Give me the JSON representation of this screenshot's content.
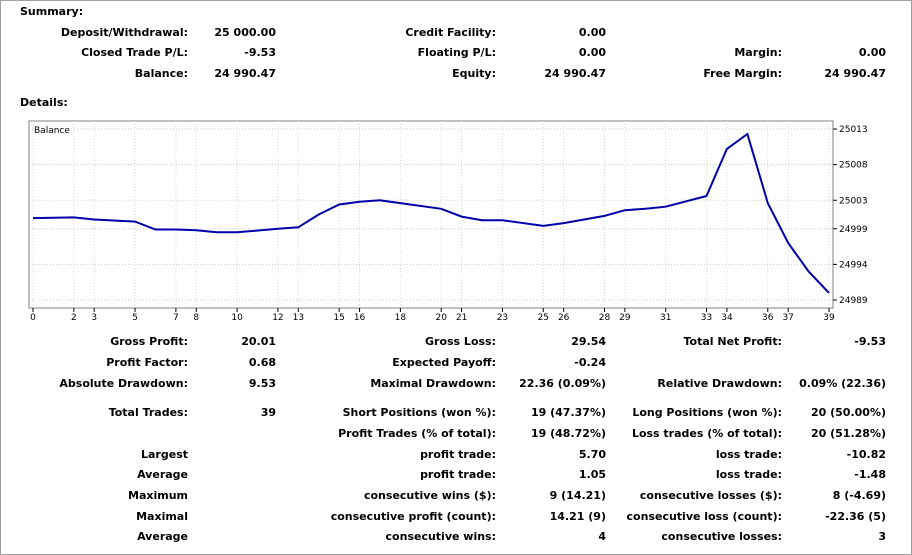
{
  "summary": {
    "title": "Summary:",
    "deposit_label": "Deposit/Withdrawal:",
    "deposit_value": "25 000.00",
    "closed_pl_label": "Closed Trade P/L:",
    "closed_pl_value": "-9.53",
    "balance_label": "Balance:",
    "balance_value": "24 990.47",
    "credit_label": "Credit Facility:",
    "credit_value": "0.00",
    "floating_label": "Floating P/L:",
    "floating_value": "0.00",
    "equity_label": "Equity:",
    "equity_value": "24 990.47",
    "margin_label": "Margin:",
    "margin_value": "0.00",
    "free_margin_label": "Free Margin:",
    "free_margin_value": "24 990.47"
  },
  "details": {
    "title": "Details:",
    "gross_profit_label": "Gross Profit:",
    "gross_profit_value": "20.01",
    "gross_loss_label": "Gross Loss:",
    "gross_loss_value": "29.54",
    "net_profit_label": "Total Net Profit:",
    "net_profit_value": "-9.53",
    "profit_factor_label": "Profit Factor:",
    "profit_factor_value": "0.68",
    "expected_payoff_label": "Expected Payoff:",
    "expected_payoff_value": "-0.24",
    "abs_dd_label": "Absolute Drawdown:",
    "abs_dd_value": "9.53",
    "max_dd_label": "Maximal Drawdown:",
    "max_dd_value": "22.36 (0.09%)",
    "rel_dd_label": "Relative Drawdown:",
    "rel_dd_value": "0.09% (22.36)",
    "total_trades_label": "Total Trades:",
    "total_trades_value": "39",
    "short_label": "Short Positions (won %):",
    "short_value": "19 (47.37%)",
    "long_label": "Long Positions (won %):",
    "long_value": "20 (50.00%)",
    "profit_trades_label": "Profit Trades (% of total):",
    "profit_trades_value": "19 (48.72%)",
    "loss_trades_label": "Loss trades (% of total):",
    "loss_trades_value": "20 (51.28%)",
    "largest_label": "Largest",
    "largest_profit_label": "profit trade:",
    "largest_profit_value": "5.70",
    "largest_loss_label": "loss trade:",
    "largest_loss_value": "-10.82",
    "average_label": "Average",
    "average_profit_label": "profit trade:",
    "average_profit_value": "1.05",
    "average_loss_label": "loss trade:",
    "average_loss_value": "-1.48",
    "maximum_label": "Maximum",
    "max_cons_wins_label": "consecutive wins ($):",
    "max_cons_wins_value": "9 (14.21)",
    "max_cons_losses_label": "consecutive losses ($):",
    "max_cons_losses_value": "8 (-4.69)",
    "maximal_label": "Maximal",
    "maximal_profit_label": "consecutive profit (count):",
    "maximal_profit_value": "14.21 (9)",
    "maximal_loss_label": "consecutive loss (count):",
    "maximal_loss_value": "-22.36 (5)",
    "average2_label": "Average",
    "avg_cons_wins_label": "consecutive wins:",
    "avg_cons_wins_value": "4",
    "avg_cons_losses_label": "consecutive losses:",
    "avg_cons_losses_value": "3"
  },
  "chart_data": {
    "type": "line",
    "title": "Balance",
    "line_color": "#0000aa",
    "grid": true,
    "x_ticks": [
      "0",
      "2",
      "3",
      "5",
      "7",
      "8",
      "10",
      "12",
      "13",
      "15",
      "16",
      "18",
      "20",
      "21",
      "23",
      "25",
      "26",
      "28",
      "29",
      "31",
      "33",
      "34",
      "36",
      "37",
      "39"
    ],
    "y_ticks": [
      "25013",
      "25008",
      "25003",
      "24999",
      "24994",
      "24989"
    ],
    "ylim": [
      24989,
      25013
    ],
    "series": [
      {
        "name": "Balance",
        "x": [
          0,
          2,
          3,
          5,
          6,
          7,
          8,
          9,
          10,
          12,
          13,
          14,
          15,
          16,
          17,
          18,
          20,
          21,
          22,
          23,
          25,
          26,
          28,
          29,
          30,
          31,
          33,
          34,
          35,
          36,
          37,
          38,
          39
        ],
        "y": [
          25000.5,
          25000.6,
          25000.3,
          25000.0,
          24998.9,
          24998.9,
          24998.8,
          24998.5,
          24998.5,
          24999.0,
          24999.2,
          25001.0,
          25002.4,
          25002.8,
          25003.0,
          25002.6,
          25001.8,
          25000.7,
          25000.2,
          25000.2,
          24999.4,
          24999.8,
          25000.8,
          25001.6,
          25001.8,
          25002.1,
          25003.6,
          25010.2,
          25012.3,
          25002.6,
          24997.0,
          24993.0,
          24990.0
        ]
      }
    ]
  }
}
